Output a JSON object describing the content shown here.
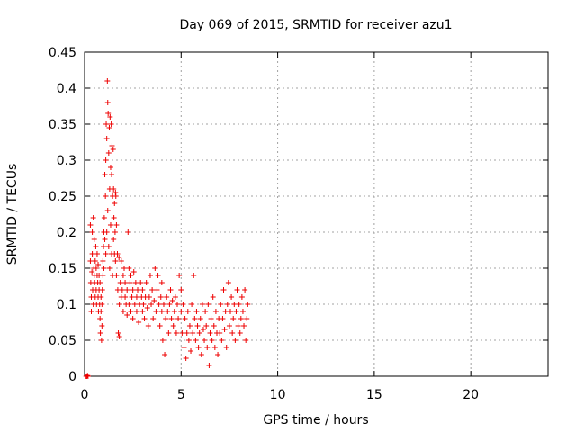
{
  "chart_data": {
    "type": "scatter",
    "title": "Day 069 of 2015, SRMTID for receiver azu1",
    "xlabel": "GPS time / hours",
    "ylabel": "SRMTID / TECUs",
    "xlim": [
      0,
      24
    ],
    "ylim": [
      0,
      0.45
    ],
    "xticks": [
      0,
      5,
      10,
      15,
      20
    ],
    "yticks": [
      0,
      0.05,
      0.1,
      0.15,
      0.2,
      0.25,
      0.3,
      0.35,
      0.4,
      0.45
    ],
    "xtick_labels": [
      "0",
      "5",
      "10",
      "15",
      "20"
    ],
    "ytick_labels": [
      "0",
      "0.05",
      "0.1",
      "0.15",
      "0.2",
      "0.25",
      "0.3",
      "0.35",
      "0.4",
      "0.45"
    ],
    "grid": true,
    "marker": "+",
    "color": "#ee0000",
    "series": [
      {
        "name": "SRMTID",
        "points": [
          [
            0.08,
            0.0
          ],
          [
            0.12,
            0.0
          ],
          [
            0.15,
            0.001
          ],
          [
            0.18,
            0.0
          ],
          [
            0.3,
            0.21
          ],
          [
            0.3,
            0.16
          ],
          [
            0.32,
            0.13
          ],
          [
            0.35,
            0.11
          ],
          [
            0.35,
            0.09
          ],
          [
            0.38,
            0.145
          ],
          [
            0.4,
            0.2
          ],
          [
            0.4,
            0.17
          ],
          [
            0.42,
            0.12
          ],
          [
            0.45,
            0.22
          ],
          [
            0.45,
            0.1
          ],
          [
            0.48,
            0.15
          ],
          [
            0.5,
            0.19
          ],
          [
            0.5,
            0.14
          ],
          [
            0.52,
            0.13
          ],
          [
            0.55,
            0.11
          ],
          [
            0.55,
            0.16
          ],
          [
            0.58,
            0.18
          ],
          [
            0.6,
            0.15
          ],
          [
            0.6,
            0.12
          ],
          [
            0.62,
            0.1
          ],
          [
            0.65,
            0.14
          ],
          [
            0.65,
            0.17
          ],
          [
            0.68,
            0.13
          ],
          [
            0.7,
            0.11
          ],
          [
            0.7,
            0.155
          ],
          [
            0.72,
            0.09
          ],
          [
            0.75,
            0.12
          ],
          [
            0.75,
            0.14
          ],
          [
            0.78,
            0.1
          ],
          [
            0.8,
            0.08
          ],
          [
            0.8,
            0.13
          ],
          [
            0.82,
            0.06
          ],
          [
            0.85,
            0.09
          ],
          [
            0.85,
            0.11
          ],
          [
            0.88,
            0.05
          ],
          [
            0.9,
            0.07
          ],
          [
            0.9,
            0.1
          ],
          [
            0.92,
            0.12
          ],
          [
            0.95,
            0.14
          ],
          [
            0.95,
            0.16
          ],
          [
            0.98,
            0.18
          ],
          [
            1.0,
            0.2
          ],
          [
            1.0,
            0.15
          ],
          [
            1.02,
            0.22
          ],
          [
            1.05,
            0.28
          ],
          [
            1.05,
            0.19
          ],
          [
            1.08,
            0.25
          ],
          [
            1.1,
            0.3
          ],
          [
            1.1,
            0.17
          ],
          [
            1.12,
            0.35
          ],
          [
            1.15,
            0.33
          ],
          [
            1.15,
            0.2
          ],
          [
            1.18,
            0.41
          ],
          [
            1.2,
            0.38
          ],
          [
            1.2,
            0.23
          ],
          [
            1.22,
            0.365
          ],
          [
            1.25,
            0.31
          ],
          [
            1.25,
            0.18
          ],
          [
            1.28,
            0.345
          ],
          [
            1.3,
            0.26
          ],
          [
            1.3,
            0.15
          ],
          [
            1.32,
            0.36
          ],
          [
            1.35,
            0.29
          ],
          [
            1.35,
            0.21
          ],
          [
            1.38,
            0.35
          ],
          [
            1.4,
            0.28
          ],
          [
            1.4,
            0.17
          ],
          [
            1.42,
            0.32
          ],
          [
            1.45,
            0.25
          ],
          [
            1.45,
            0.14
          ],
          [
            1.48,
            0.315
          ],
          [
            1.5,
            0.26
          ],
          [
            1.5,
            0.19
          ],
          [
            1.52,
            0.22
          ],
          [
            1.55,
            0.24
          ],
          [
            1.55,
            0.17
          ],
          [
            1.58,
            0.2
          ],
          [
            1.6,
            0.255
          ],
          [
            1.6,
            0.16
          ],
          [
            1.62,
            0.25
          ],
          [
            1.65,
            0.21
          ],
          [
            1.65,
            0.14
          ],
          [
            1.7,
            0.17
          ],
          [
            1.72,
            0.12
          ],
          [
            1.75,
            0.06
          ],
          [
            1.78,
            0.165
          ],
          [
            1.8,
            0.055
          ],
          [
            1.8,
            0.1
          ],
          [
            1.85,
            0.13
          ],
          [
            1.9,
            0.16
          ],
          [
            1.9,
            0.11
          ],
          [
            1.95,
            0.12
          ],
          [
            2.0,
            0.14
          ],
          [
            2.0,
            0.09
          ],
          [
            2.05,
            0.15
          ],
          [
            2.1,
            0.11
          ],
          [
            2.1,
            0.13
          ],
          [
            2.15,
            0.1
          ],
          [
            2.2,
            0.12
          ],
          [
            2.2,
            0.085
          ],
          [
            2.25,
            0.2
          ],
          [
            2.3,
            0.15
          ],
          [
            2.3,
            0.1
          ],
          [
            2.35,
            0.13
          ],
          [
            2.4,
            0.14
          ],
          [
            2.4,
            0.09
          ],
          [
            2.45,
            0.11
          ],
          [
            2.5,
            0.12
          ],
          [
            2.5,
            0.08
          ],
          [
            2.55,
            0.145
          ],
          [
            2.6,
            0.1
          ],
          [
            2.65,
            0.13
          ],
          [
            2.7,
            0.09
          ],
          [
            2.7,
            0.11
          ],
          [
            2.75,
            0.12
          ],
          [
            2.8,
            0.075
          ],
          [
            2.85,
            0.1
          ],
          [
            2.9,
            0.13
          ],
          [
            2.95,
            0.11
          ],
          [
            3.0,
            0.09
          ],
          [
            3.0,
            0.12
          ],
          [
            3.05,
            0.1
          ],
          [
            3.1,
            0.08
          ],
          [
            3.15,
            0.11
          ],
          [
            3.2,
            0.13
          ],
          [
            3.25,
            0.095
          ],
          [
            3.3,
            0.07
          ],
          [
            3.35,
            0.11
          ],
          [
            3.4,
            0.14
          ],
          [
            3.45,
            0.1
          ],
          [
            3.5,
            0.12
          ],
          [
            3.55,
            0.08
          ],
          [
            3.6,
            0.105
          ],
          [
            3.65,
            0.15
          ],
          [
            3.7,
            0.09
          ],
          [
            3.75,
            0.12
          ],
          [
            3.8,
            0.14
          ],
          [
            3.85,
            0.1
          ],
          [
            3.9,
            0.07
          ],
          [
            3.95,
            0.11
          ],
          [
            4.0,
            0.13
          ],
          [
            4.0,
            0.09
          ],
          [
            4.05,
            0.05
          ],
          [
            4.1,
            0.1
          ],
          [
            4.15,
            0.03
          ],
          [
            4.2,
            0.08
          ],
          [
            4.25,
            0.11
          ],
          [
            4.3,
            0.09
          ],
          [
            4.35,
            0.06
          ],
          [
            4.4,
            0.1
          ],
          [
            4.45,
            0.12
          ],
          [
            4.5,
            0.08
          ],
          [
            4.55,
            0.105
          ],
          [
            4.6,
            0.07
          ],
          [
            4.65,
            0.09
          ],
          [
            4.7,
            0.11
          ],
          [
            4.75,
            0.06
          ],
          [
            4.8,
            0.1
          ],
          [
            4.85,
            0.08
          ],
          [
            4.9,
            0.14
          ],
          [
            5.0,
            0.09
          ],
          [
            5.0,
            0.12
          ],
          [
            5.05,
            0.06
          ],
          [
            5.1,
            0.1
          ],
          [
            5.15,
            0.04
          ],
          [
            5.2,
            0.08
          ],
          [
            5.25,
            0.025
          ],
          [
            5.3,
            0.06
          ],
          [
            5.35,
            0.09
          ],
          [
            5.4,
            0.05
          ],
          [
            5.45,
            0.07
          ],
          [
            5.5,
            0.035
          ],
          [
            5.55,
            0.1
          ],
          [
            5.6,
            0.06
          ],
          [
            5.65,
            0.14
          ],
          [
            5.7,
            0.08
          ],
          [
            5.75,
            0.05
          ],
          [
            5.8,
            0.09
          ],
          [
            5.85,
            0.07
          ],
          [
            5.9,
            0.04
          ],
          [
            5.95,
            0.06
          ],
          [
            6.0,
            0.08
          ],
          [
            6.05,
            0.03
          ],
          [
            6.1,
            0.1
          ],
          [
            6.15,
            0.065
          ],
          [
            6.2,
            0.05
          ],
          [
            6.25,
            0.09
          ],
          [
            6.3,
            0.07
          ],
          [
            6.35,
            0.04
          ],
          [
            6.4,
            0.1
          ],
          [
            6.45,
            0.015
          ],
          [
            6.5,
            0.06
          ],
          [
            6.55,
            0.08
          ],
          [
            6.6,
            0.05
          ],
          [
            6.65,
            0.11
          ],
          [
            6.7,
            0.07
          ],
          [
            6.75,
            0.04
          ],
          [
            6.8,
            0.09
          ],
          [
            6.85,
            0.06
          ],
          [
            6.9,
            0.03
          ],
          [
            6.95,
            0.08
          ],
          [
            7.0,
            0.06
          ],
          [
            7.05,
            0.1
          ],
          [
            7.1,
            0.05
          ],
          [
            7.15,
            0.08
          ],
          [
            7.2,
            0.12
          ],
          [
            7.25,
            0.065
          ],
          [
            7.3,
            0.09
          ],
          [
            7.35,
            0.04
          ],
          [
            7.4,
            0.1
          ],
          [
            7.45,
            0.13
          ],
          [
            7.5,
            0.07
          ],
          [
            7.55,
            0.09
          ],
          [
            7.6,
            0.11
          ],
          [
            7.65,
            0.06
          ],
          [
            7.7,
            0.08
          ],
          [
            7.75,
            0.1
          ],
          [
            7.8,
            0.05
          ],
          [
            7.85,
            0.09
          ],
          [
            7.9,
            0.12
          ],
          [
            7.95,
            0.07
          ],
          [
            8.0,
            0.1
          ],
          [
            8.05,
            0.06
          ],
          [
            8.1,
            0.08
          ],
          [
            8.15,
            0.11
          ],
          [
            8.2,
            0.09
          ],
          [
            8.25,
            0.07
          ],
          [
            8.3,
            0.12
          ],
          [
            8.35,
            0.05
          ],
          [
            8.4,
            0.08
          ],
          [
            8.45,
            0.1
          ]
        ]
      }
    ]
  }
}
